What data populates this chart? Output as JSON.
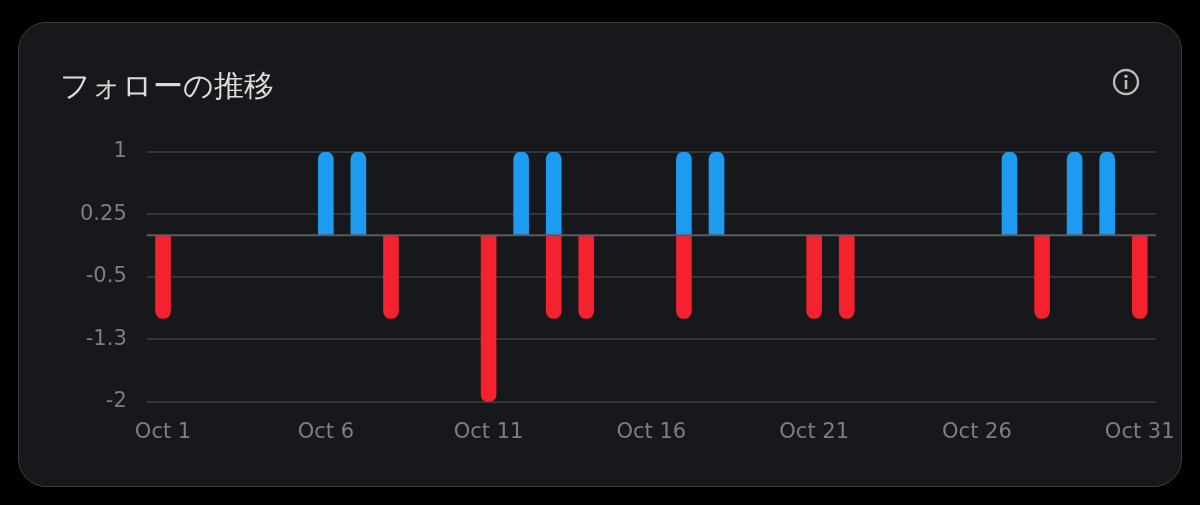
{
  "chart_data": {
    "type": "bar",
    "title": "フォローの推移",
    "stacked": true,
    "legend": false,
    "grid": "y",
    "categories": [
      "Oct 1",
      null,
      null,
      null,
      null,
      "Oct 6",
      null,
      null,
      null,
      null,
      "Oct 11",
      null,
      null,
      null,
      null,
      "Oct 16",
      null,
      null,
      null,
      null,
      "Oct 21",
      null,
      null,
      null,
      null,
      "Oct 26",
      null,
      null,
      null,
      null,
      "Oct 31"
    ],
    "series": [
      {
        "color": "#1d9bf0",
        "values": [
          null,
          null,
          null,
          null,
          null,
          1,
          1,
          null,
          null,
          null,
          null,
          1,
          1,
          null,
          null,
          null,
          1,
          1,
          null,
          null,
          null,
          null,
          null,
          null,
          null,
          null,
          1,
          null,
          1,
          1,
          null
        ]
      },
      {
        "color": "#f4212e",
        "values": [
          -1,
          null,
          null,
          null,
          null,
          null,
          null,
          -1,
          null,
          null,
          -2,
          null,
          -1,
          -1,
          null,
          null,
          -1,
          null,
          null,
          null,
          -1,
          -1,
          null,
          null,
          null,
          null,
          null,
          -1,
          null,
          null,
          -1
        ]
      }
    ],
    "ylim": [
      -2,
      1
    ],
    "yticks": [
      1,
      0.25,
      -0.5,
      {
        "value": -1.25,
        "label": "-1.3"
      },
      -2
    ],
    "ref_lines": [
      {
        "axis": "y",
        "value": 0,
        "color": "#5a5b60"
      }
    ]
  }
}
